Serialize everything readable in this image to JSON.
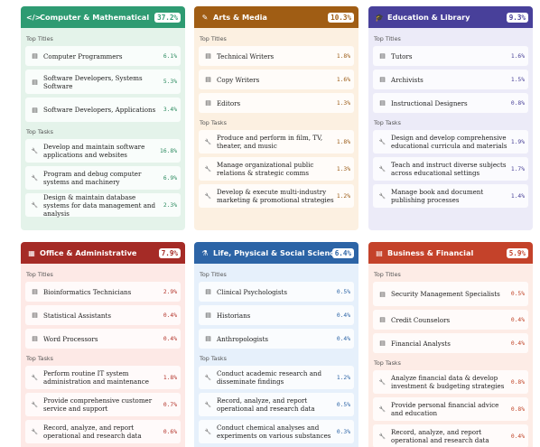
{
  "cards": [
    {
      "title": "Computer & Mathematical",
      "pct": "37.2%",
      "icon": "</>",
      "header_color": "#2e9b72",
      "bg_color": "#e4f3ea",
      "text_color": "#2b8a5f",
      "top_titles_label": "Top Titles",
      "top_tasks_label": "Top Tasks",
      "titles": [
        {
          "label": "Computer Programmers",
          "pct": "6.1%"
        },
        {
          "label": "Software Developers, Systems Software",
          "pct": "5.3%"
        },
        {
          "label": "Software Developers, Applications",
          "pct": "3.4%"
        }
      ],
      "tasks": [
        {
          "label": "Develop and maintain software applications and websites",
          "pct": "16.8%"
        },
        {
          "label": "Program and debug computer systems and machinery",
          "pct": "6.9%"
        },
        {
          "label": "Design & maintain database systems for data management and analysis",
          "pct": "2.3%"
        }
      ]
    },
    {
      "title": "Arts & Media",
      "pct": "10.3%",
      "icon": "✎",
      "header_color": "#a05d14",
      "bg_color": "#fcf0e1",
      "text_color": "#9a5a14",
      "top_titles_label": "Top Titles",
      "top_tasks_label": "Top Tasks",
      "titles": [
        {
          "label": "Technical Writers",
          "pct": "1.8%"
        },
        {
          "label": "Copy Writers",
          "pct": "1.6%"
        },
        {
          "label": "Editors",
          "pct": "1.3%"
        }
      ],
      "tasks": [
        {
          "label": "Produce and perform in film, TV, theater, and music",
          "pct": "1.8%"
        },
        {
          "label": "Manage organizational public relations & strategic comms",
          "pct": "1.3%"
        },
        {
          "label": "Develop & execute multi-industry marketing & promotional strategies",
          "pct": "1.2%"
        }
      ]
    },
    {
      "title": "Education & Library",
      "pct": "9.3%",
      "icon": "🎓",
      "header_color": "#48409a",
      "bg_color": "#ecebf8",
      "text_color": "#4a4298",
      "top_titles_label": "Top Titles",
      "top_tasks_label": "Top Tasks",
      "titles": [
        {
          "label": "Tutors",
          "pct": "1.6%"
        },
        {
          "label": "Archivists",
          "pct": "1.5%"
        },
        {
          "label": "Instructional Designers",
          "pct": "0.8%"
        }
      ],
      "tasks": [
        {
          "label": "Design and develop comprehensive educational curricula and materials",
          "pct": "1.9%"
        },
        {
          "label": "Teach and instruct diverse subjects across educational settings",
          "pct": "1.7%"
        },
        {
          "label": "Manage book and document publishing processes",
          "pct": "1.4%"
        }
      ]
    },
    {
      "title": "Office & Administrative",
      "pct": "7.9%",
      "icon": "▦",
      "header_color": "#a52b26",
      "bg_color": "#fde9e6",
      "text_color": "#b23228",
      "top_titles_label": "Top Titles",
      "top_tasks_label": "Top Tasks",
      "titles": [
        {
          "label": "Bioinformatics Technicians",
          "pct": "2.9%"
        },
        {
          "label": "Statistical Assistants",
          "pct": "0.4%"
        },
        {
          "label": "Word Processors",
          "pct": "0.4%"
        }
      ],
      "tasks": [
        {
          "label": "Perform routine IT system administration and maintenance",
          "pct": "1.8%"
        },
        {
          "label": "Provide comprehensive customer service and support",
          "pct": "0.7%"
        },
        {
          "label": "Record, analyze, and report operational and research data",
          "pct": "0.6%"
        }
      ]
    },
    {
      "title": "Life, Physical & Social Science",
      "pct": "6.4%",
      "icon": "⚗",
      "header_color": "#2c64a6",
      "bg_color": "#e6f0fb",
      "text_color": "#2c64a6",
      "top_titles_label": "Top Titles",
      "top_tasks_label": "Top Tasks",
      "titles": [
        {
          "label": "Clinical Psychologists",
          "pct": "0.5%"
        },
        {
          "label": "Historians",
          "pct": "0.4%"
        },
        {
          "label": "Anthropologists",
          "pct": "0.4%"
        }
      ],
      "tasks": [
        {
          "label": "Conduct academic research and disseminate findings",
          "pct": "1.2%"
        },
        {
          "label": "Record, analyze, and report operational and research data",
          "pct": "0.5%"
        },
        {
          "label": "Conduct chemical analyses and experiments on various substances",
          "pct": "0.3%"
        }
      ]
    },
    {
      "title": "Business & Financial",
      "pct": "5.9%",
      "icon": "▤",
      "header_color": "#c4422a",
      "bg_color": "#fdece6",
      "text_color": "#c04428",
      "top_titles_label": "Top Titles",
      "top_tasks_label": "Top Tasks",
      "titles": [
        {
          "label": "Security Management Specialists",
          "pct": "0.5%"
        },
        {
          "label": "Credit Counselors",
          "pct": "0.4%"
        },
        {
          "label": "Financial Analysts",
          "pct": "0.4%"
        }
      ],
      "tasks": [
        {
          "label": "Analyze financial data & develop investment & budgeting strategies",
          "pct": "0.8%"
        },
        {
          "label": "Provide personal financial advice and education",
          "pct": "0.8%"
        },
        {
          "label": "Record, analyze, and report operational and research data",
          "pct": "0.4%"
        }
      ]
    }
  ]
}
